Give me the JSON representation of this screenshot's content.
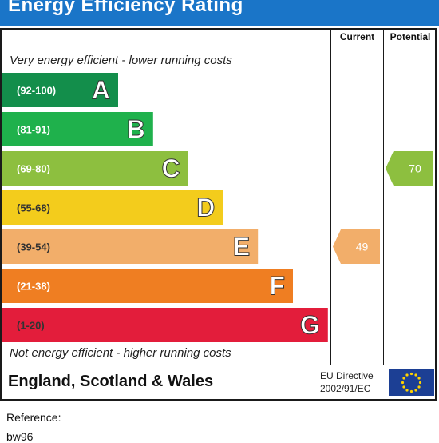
{
  "header": {
    "title": "Energy Efficiency Rating"
  },
  "columns": {
    "current": "Current",
    "potential": "Potential"
  },
  "captions": {
    "top": "Very energy efficient - lower running costs",
    "bottom": "Not energy efficient - higher running costs"
  },
  "chart_data": {
    "type": "bar",
    "title": "Energy Efficiency Rating",
    "categories": [
      "A",
      "B",
      "C",
      "D",
      "E",
      "F",
      "G"
    ],
    "bands": [
      {
        "letter": "A",
        "range": "(92-100)",
        "color": "#138e4b"
      },
      {
        "letter": "B",
        "range": "(81-91)",
        "color": "#1fb14c"
      },
      {
        "letter": "C",
        "range": "(69-80)",
        "color": "#8dbf3f"
      },
      {
        "letter": "D",
        "range": "(55-68)",
        "color": "#f3cc1c"
      },
      {
        "letter": "E",
        "range": "(39-54)",
        "color": "#f2ae6a"
      },
      {
        "letter": "F",
        "range": "(21-38)",
        "color": "#ef7e22"
      },
      {
        "letter": "G",
        "range": "(1-20)",
        "color": "#e31d3b"
      }
    ],
    "current": {
      "value": 49,
      "band": "E",
      "color": "#f2ae6a"
    },
    "potential": {
      "value": 70,
      "band": "C",
      "color": "#8dbf3f"
    }
  },
  "footer": {
    "country": "England, Scotland & Wales",
    "directive_line1": "EU Directive",
    "directive_line2": "2002/91/EC",
    "flag_color": "#1c3f94",
    "star_color": "#ffd200"
  },
  "reference": {
    "label": "Reference:",
    "value": "bw96"
  }
}
